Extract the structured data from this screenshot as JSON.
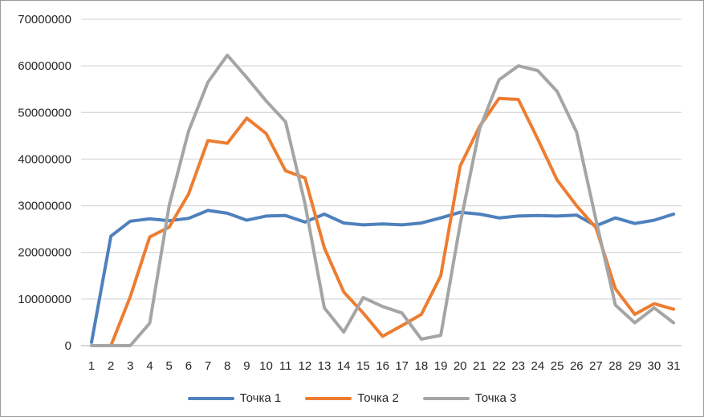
{
  "window": {
    "background": "#ffffff",
    "border_color": "#9b9b9b"
  },
  "chart_data": {
    "type": "line",
    "title": "",
    "xlabel": "",
    "ylabel": "",
    "categories": [
      "1",
      "2",
      "3",
      "4",
      "5",
      "6",
      "7",
      "8",
      "9",
      "10",
      "11",
      "12",
      "13",
      "14",
      "15",
      "16",
      "17",
      "18",
      "19",
      "20",
      "21",
      "22",
      "23",
      "24",
      "25",
      "26",
      "27",
      "28",
      "29",
      "30",
      "31"
    ],
    "series": [
      {
        "name": "Точка 1",
        "color": "#4E81BD",
        "values": [
          700000,
          23500000,
          26700000,
          27200000,
          26800000,
          27300000,
          29000000,
          28400000,
          26900000,
          27800000,
          27900000,
          26500000,
          28200000,
          26300000,
          25900000,
          26100000,
          25900000,
          26300000,
          27400000,
          28600000,
          28200000,
          27400000,
          27800000,
          27900000,
          27800000,
          28000000,
          25700000,
          27400000,
          26200000,
          26900000,
          28200000
        ]
      },
      {
        "name": "Точка 2",
        "color": "#ED7D31",
        "values": [
          0,
          0,
          10500000,
          23300000,
          25400000,
          32500000,
          44000000,
          43400000,
          48800000,
          45500000,
          37500000,
          36000000,
          21000000,
          11500000,
          7000000,
          2000000,
          4300000,
          6700000,
          15000000,
          38500000,
          47000000,
          53000000,
          52800000,
          44300000,
          35500000,
          30000000,
          25300000,
          12200000,
          6700000,
          9000000,
          7800000
        ]
      },
      {
        "name": "Точка 3",
        "color": "#A5A5A5",
        "values": [
          0,
          0,
          0,
          4800000,
          30000000,
          46000000,
          56500000,
          62300000,
          57500000,
          52500000,
          48000000,
          30500000,
          8100000,
          2900000,
          10300000,
          8400000,
          7000000,
          1400000,
          2200000,
          26000000,
          46500000,
          57000000,
          60000000,
          59000000,
          54500000,
          45800000,
          27000000,
          8700000,
          4900000,
          8100000,
          4900000
        ]
      }
    ],
    "y_ticks": [
      "0",
      "10000000",
      "20000000",
      "30000000",
      "40000000",
      "50000000",
      "60000000",
      "70000000"
    ],
    "ylim": [
      0,
      70000000
    ],
    "grid": "horizontal",
    "gridline_color": "#D9D9D9",
    "axis_line_color": "#BFBFBF",
    "tick_label_color": "#262626",
    "legend_position": "bottom"
  }
}
